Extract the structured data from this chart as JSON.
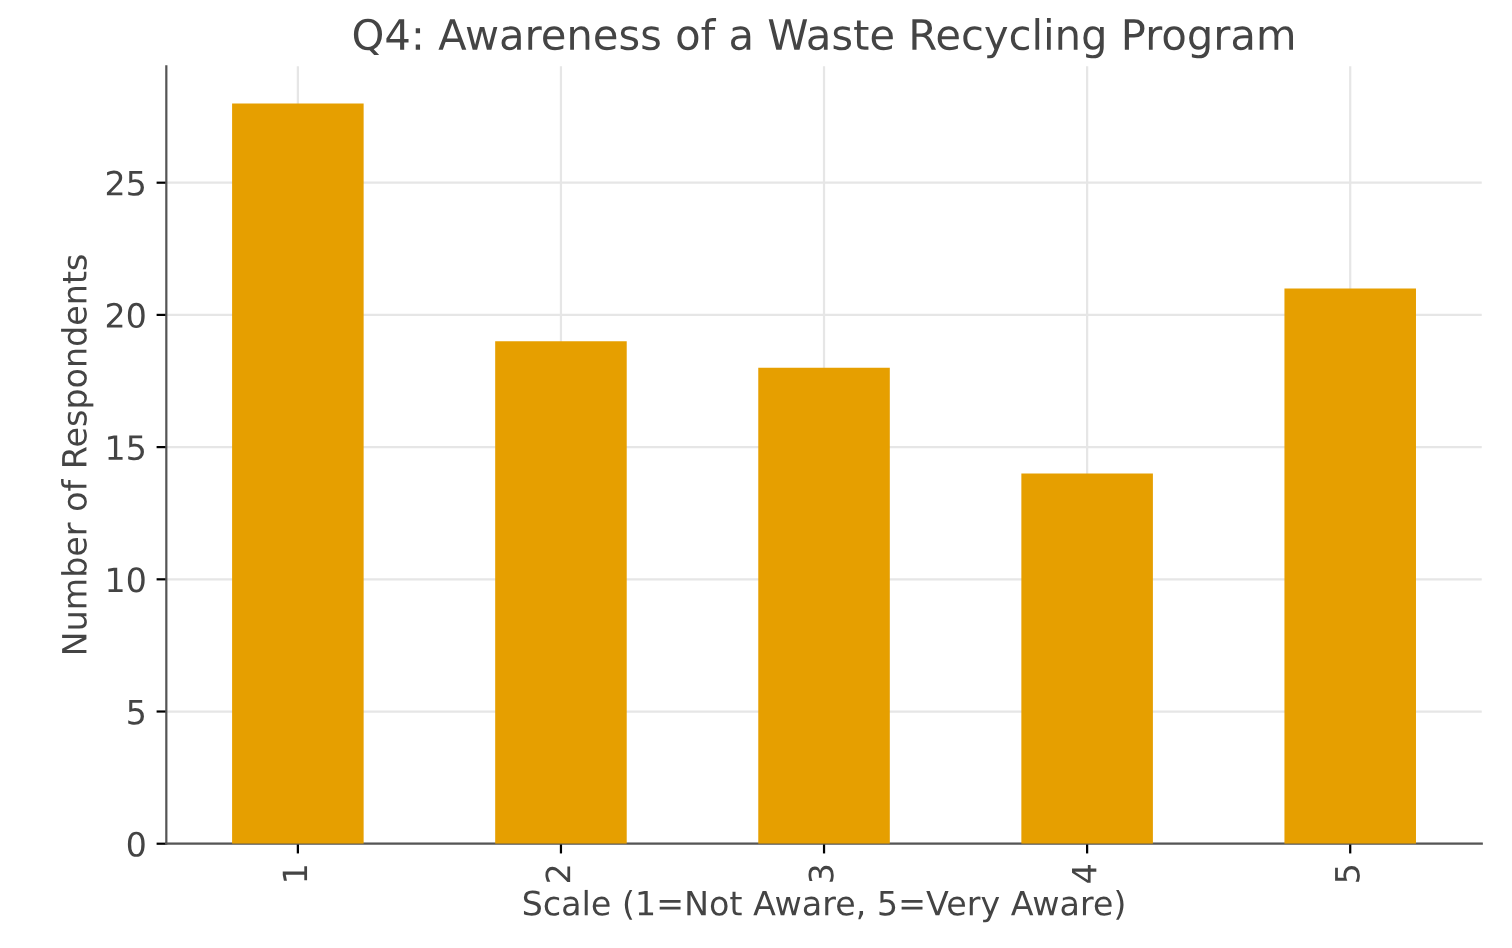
{
  "chart_data": {
    "type": "bar",
    "title": "Q4: Awareness of a Waste Recycling Program",
    "xlabel": "Scale (1=Not Aware, 5=Very Aware)",
    "ylabel": "Number of Respondents",
    "categories": [
      "1",
      "2",
      "3",
      "4",
      "5"
    ],
    "values": [
      28,
      19,
      18,
      14,
      21
    ],
    "color": "#e69f00",
    "ylim": [
      0,
      29.4
    ],
    "yticks": [
      0,
      5,
      10,
      15,
      20,
      25
    ],
    "grid": true
  }
}
